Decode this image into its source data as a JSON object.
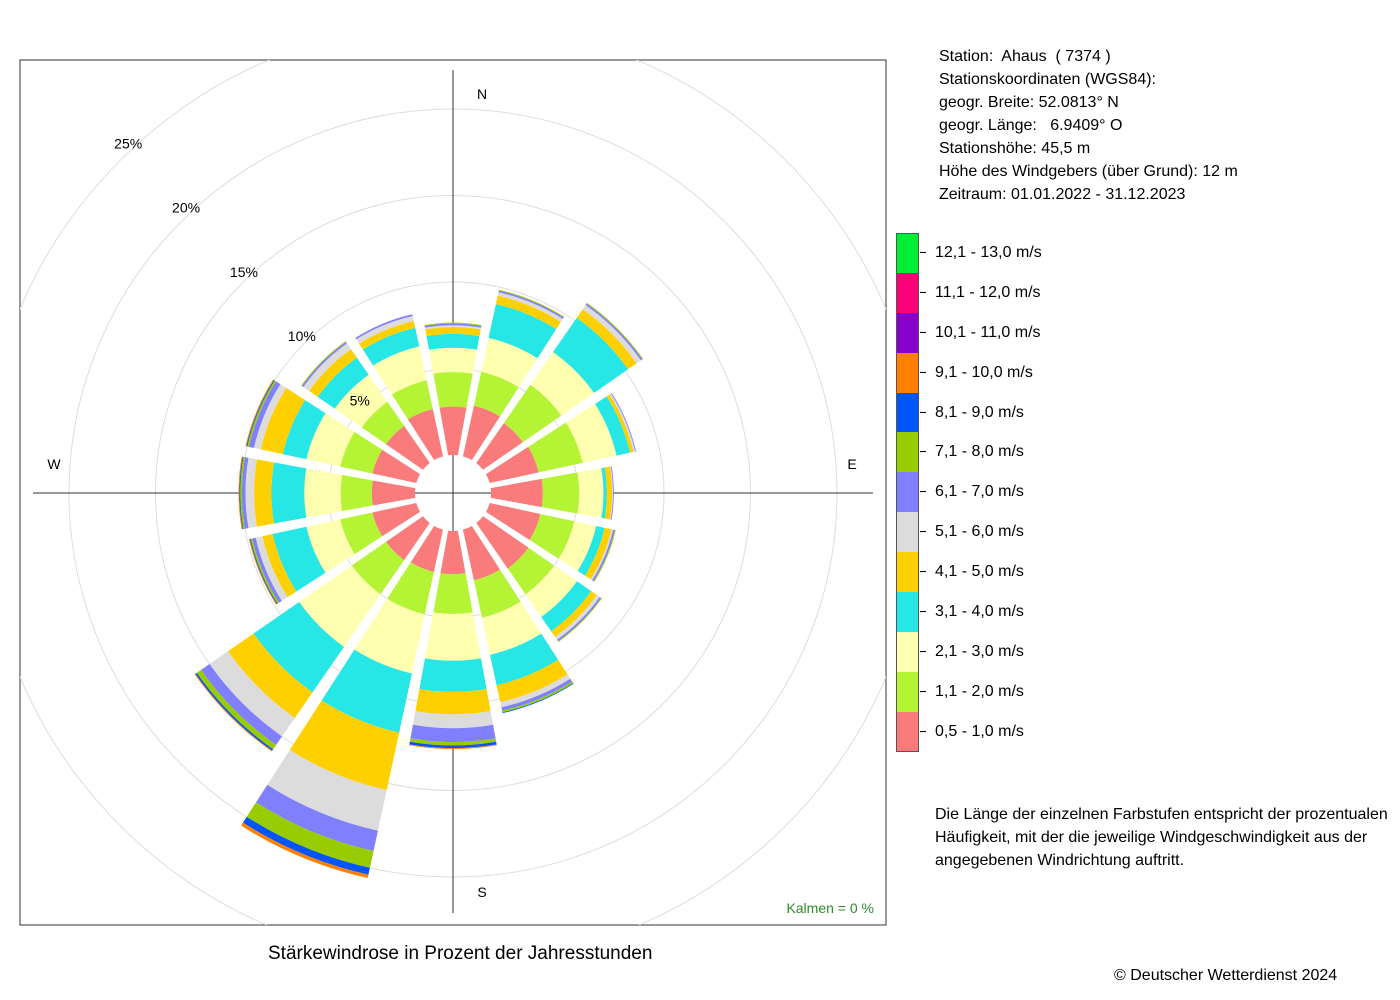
{
  "station": {
    "line1": "Station:  Ahaus  ( 7374 )",
    "line2": "Stationskoordinaten (WGS84):",
    "line3": "geogr. Breite: 52.0813° N",
    "line4": "geogr. Länge:   6.9409° O",
    "line5": "Stationshöhe: 45,5 m",
    "line6": "Höhe des Windgebers (über Grund): 12 m",
    "line7": "Zeitraum: 01.01.2022 - 31.12.2023"
  },
  "note": "Die Länge der einzelnen Farbstufen entspricht der prozentualen Häufigkeit, mit der die jeweilige Windgeschwindigkeit aus der angegebenen Windrichtung auftritt.",
  "copyright": "© Deutscher Wetterdienst  2024",
  "chart_data": {
    "type": "windrose",
    "title": "Stärkewindrose in Prozent der Jahresstunden",
    "directions": [
      "N",
      "NNE",
      "NE",
      "ENE",
      "E",
      "ESE",
      "SE",
      "SSE",
      "S",
      "SSW",
      "SW",
      "WSW",
      "W",
      "WNW",
      "NW",
      "NNW"
    ],
    "compass_labels": [
      "N",
      "E",
      "S",
      "W"
    ],
    "ring_labels": [
      "5%",
      "10%",
      "15%",
      "20%",
      "25%"
    ],
    "ring_values": [
      5,
      10,
      15,
      20,
      25
    ],
    "calm_label": "Kalmen  =  0 %",
    "calm_color": "#2e8b2e",
    "speed_classes": [
      {
        "label": "0,5 - 1,0 m/s",
        "color": "#fa7b7b"
      },
      {
        "label": "1,1 - 2,0 m/s",
        "color": "#b4f435"
      },
      {
        "label": "2,1 - 3,0 m/s",
        "color": "#ffffb0"
      },
      {
        "label": "3,1 - 4,0 m/s",
        "color": "#27e6e6"
      },
      {
        "label": "4,1 - 5,0 m/s",
        "color": "#ffd000"
      },
      {
        "label": "5,1 - 6,0 m/s",
        "color": "#dcdcdc"
      },
      {
        "label": "6,1 - 7,0 m/s",
        "color": "#8080ff"
      },
      {
        "label": "7,1 - 8,0 m/s",
        "color": "#99cc00"
      },
      {
        "label": "8,1 - 9,0 m/s",
        "color": "#0055ff"
      },
      {
        "label": "9,1 - 10,0 m/s",
        "color": "#ff8000"
      },
      {
        "label": "10,1 - 11,0 m/s",
        "color": "#8800cc"
      },
      {
        "label": "11,1 - 12,0 m/s",
        "color": "#ff0077"
      },
      {
        "label": "12,1 - 13,0 m/s",
        "color": "#00ee33"
      }
    ],
    "cumulative_percent": [
      [
        2.8,
        4.8,
        6.2,
        7.0,
        7.4,
        7.5,
        7.6,
        7.65,
        7.65,
        7.65,
        7.65,
        7.65,
        7.65
      ],
      [
        3.0,
        5.0,
        7.0,
        9.0,
        9.5,
        9.7,
        9.8,
        9.85,
        9.85,
        9.85,
        9.85,
        9.85,
        9.85
      ],
      [
        2.8,
        5.5,
        7.8,
        10.2,
        10.8,
        11.1,
        11.2,
        11.25,
        11.25,
        11.25,
        11.25,
        11.25,
        11.25
      ],
      [
        2.9,
        5.5,
        7.5,
        8.3,
        8.5,
        8.6,
        8.65,
        8.65,
        8.65,
        8.65,
        8.65,
        8.65,
        8.65
      ],
      [
        3.0,
        5.1,
        6.5,
        6.7,
        7.0,
        7.05,
        7.1,
        7.1,
        7.1,
        7.1,
        7.1,
        7.1,
        7.1
      ],
      [
        3.0,
        5.0,
        6.3,
        6.8,
        7.2,
        7.3,
        7.4,
        7.45,
        7.45,
        7.45,
        7.45,
        7.45,
        7.45
      ],
      [
        3.2,
        5.0,
        6.6,
        7.6,
        8.0,
        8.2,
        8.3,
        8.35,
        8.35,
        8.35,
        8.35,
        8.35,
        8.35
      ],
      [
        3.0,
        5.2,
        7.4,
        9.2,
        10.2,
        10.5,
        10.7,
        10.8,
        10.85,
        10.85,
        10.85,
        10.85,
        10.85
      ],
      [
        2.5,
        4.8,
        7.5,
        9.3,
        10.6,
        11.4,
        12.2,
        12.4,
        12.55,
        12.6,
        12.6,
        12.6,
        12.6
      ],
      [
        2.5,
        5.0,
        8.5,
        12.0,
        15.4,
        17.8,
        19.0,
        20.0,
        20.4,
        20.6,
        20.6,
        20.6,
        20.6
      ],
      [
        2.6,
        5.0,
        8.7,
        11.9,
        13.7,
        15.0,
        15.6,
        15.9,
        16.0,
        16.05,
        16.05,
        16.05,
        16.05
      ],
      [
        2.6,
        4.5,
        6.5,
        8.5,
        9.1,
        9.5,
        9.7,
        9.8,
        9.85,
        9.9,
        9.9,
        9.9,
        9.9
      ],
      [
        2.5,
        4.3,
        6.4,
        8.3,
        9.3,
        9.8,
        10.0,
        10.1,
        10.15,
        10.2,
        10.2,
        10.2,
        10.2
      ],
      [
        2.6,
        4.5,
        6.5,
        7.9,
        9.2,
        9.6,
        9.9,
        10.0,
        10.05,
        10.1,
        10.1,
        10.1,
        10.1
      ],
      [
        2.6,
        4.3,
        6.2,
        7.4,
        8.0,
        8.4,
        8.5,
        8.55,
        8.55,
        8.55,
        8.55,
        8.55,
        8.55
      ],
      [
        2.8,
        4.5,
        6.5,
        7.6,
        8.0,
        8.3,
        8.4,
        8.4,
        8.4,
        8.4,
        8.4,
        8.4,
        8.4
      ]
    ]
  }
}
